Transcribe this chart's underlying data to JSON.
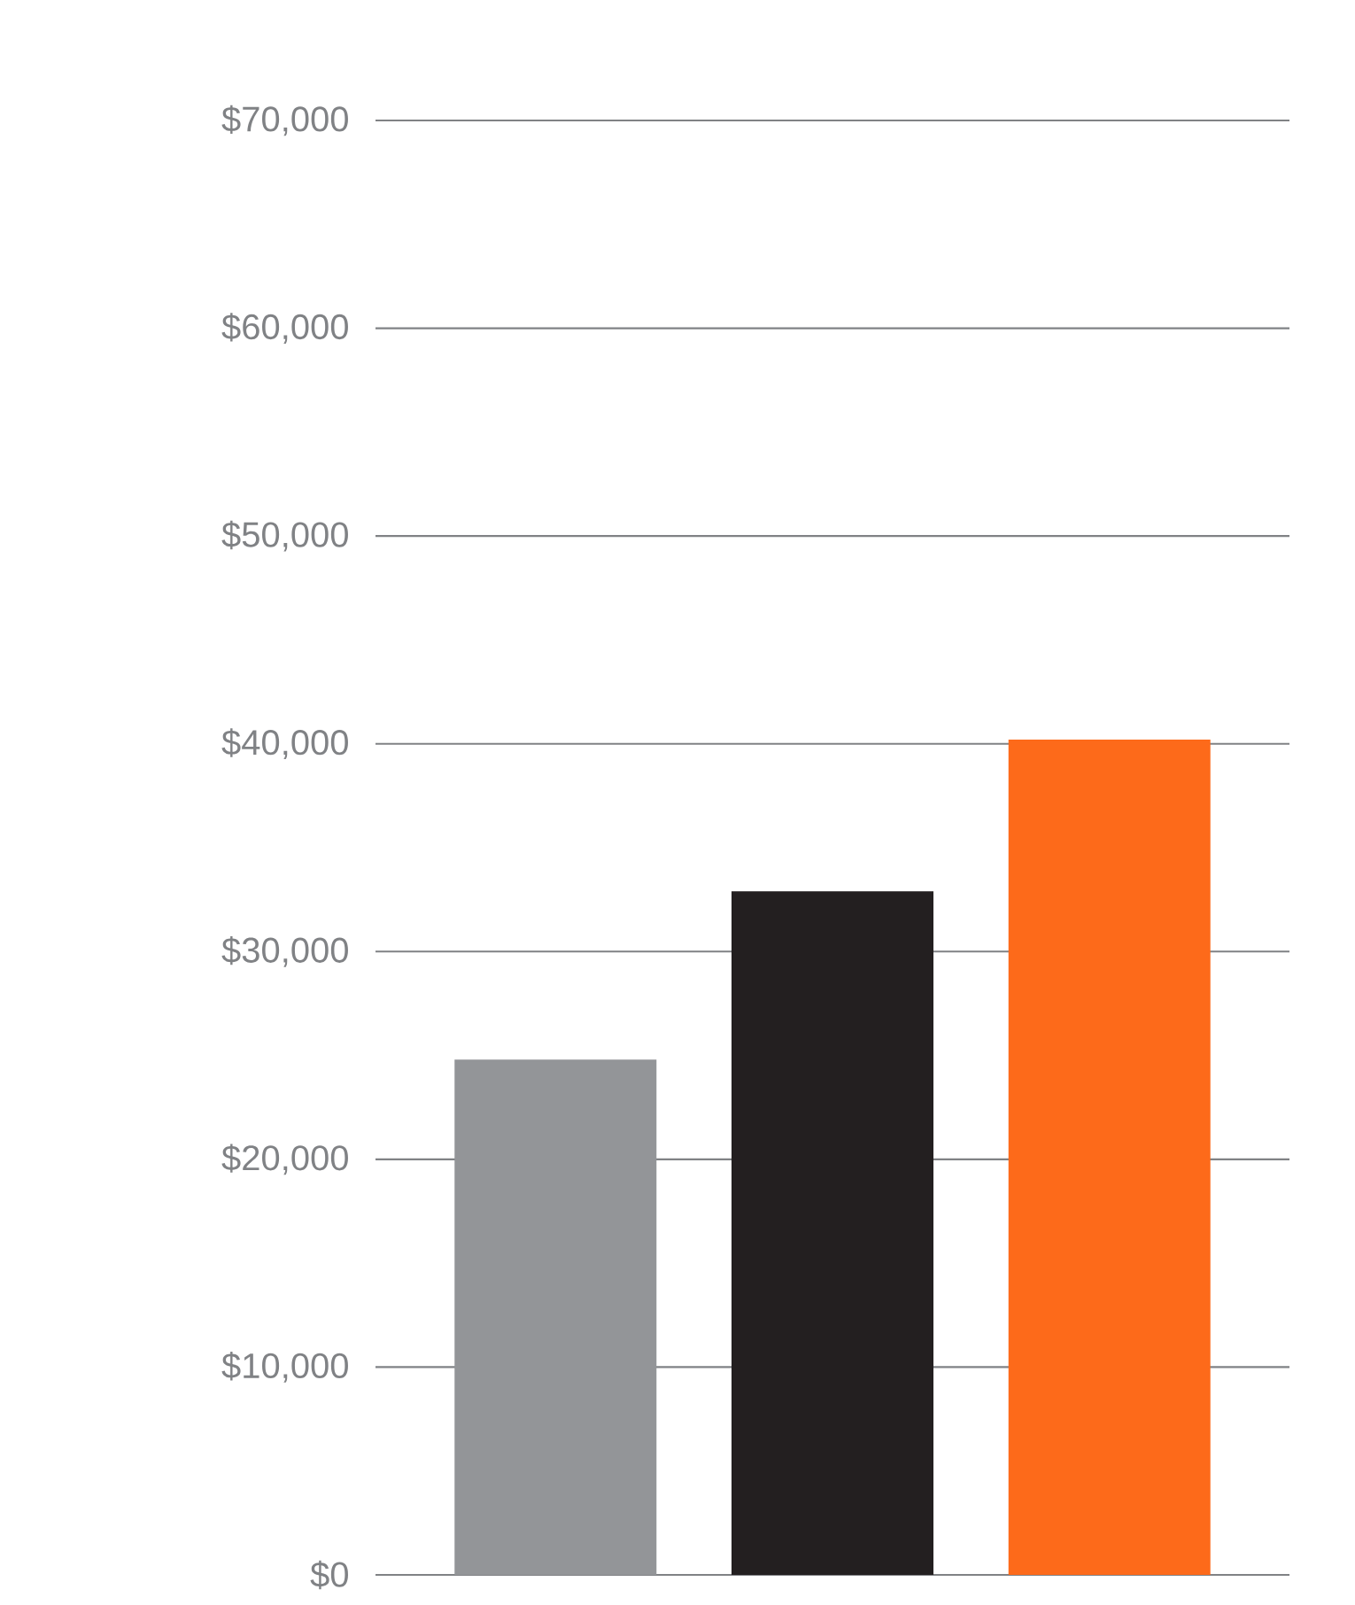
{
  "chart_data": {
    "type": "bar",
    "categories": [
      null,
      null,
      null
    ],
    "values": [
      24800,
      32900,
      40200
    ],
    "colors": [
      "#939598",
      "#231f20",
      "#fd6a1a"
    ],
    "ylim": [
      0,
      70000
    ],
    "yticks": [
      {
        "value": 0,
        "label": "$0"
      },
      {
        "value": 10000,
        "label": "$10,000"
      },
      {
        "value": 20000,
        "label": "$20,000"
      },
      {
        "value": 30000,
        "label": "$30,000"
      },
      {
        "value": 40000,
        "label": "$40,000"
      },
      {
        "value": 50000,
        "label": "$50,000"
      },
      {
        "value": 60000,
        "label": "$60,000"
      },
      {
        "value": 70000,
        "label": "$70,000"
      }
    ],
    "grid": "y",
    "tick_labels": "y"
  }
}
